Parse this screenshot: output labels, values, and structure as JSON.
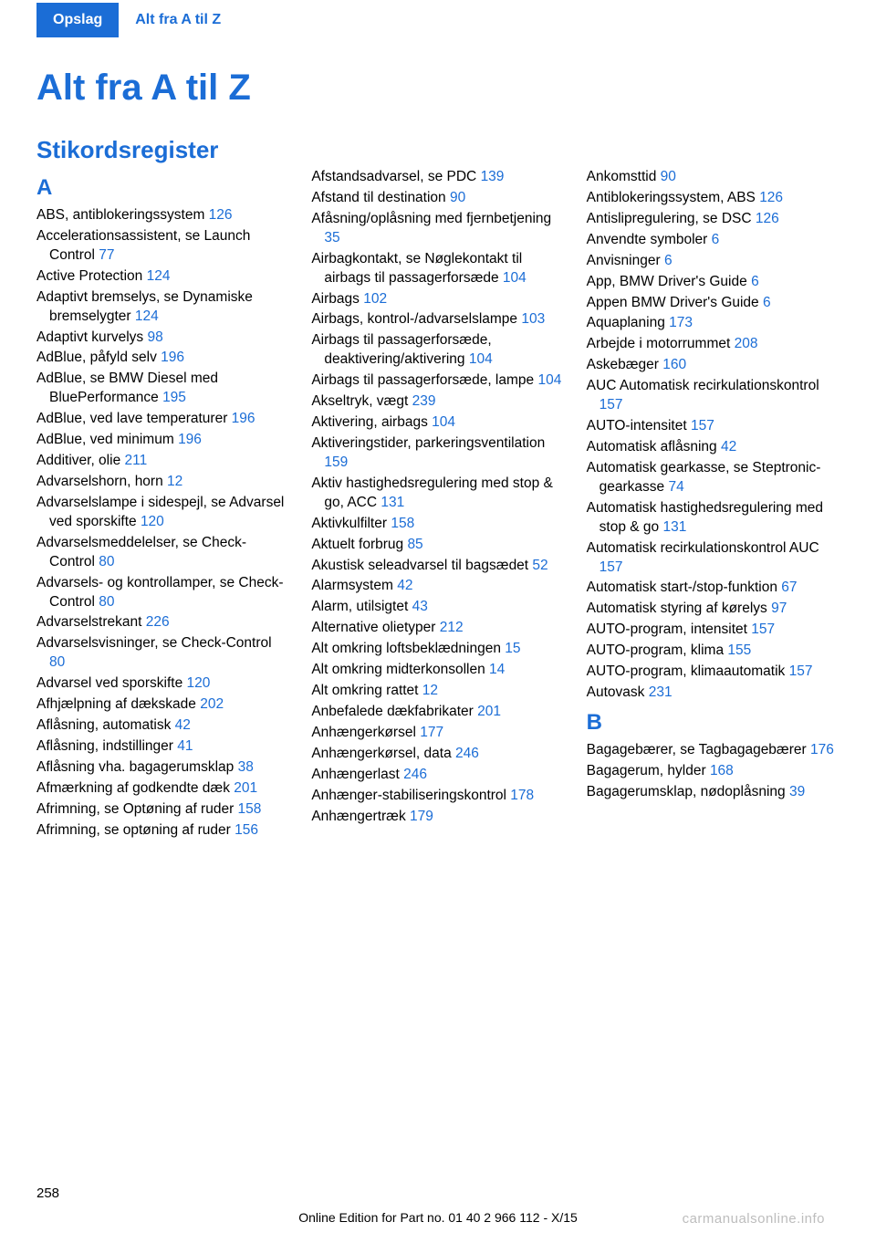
{
  "header": {
    "tab": "Opslag",
    "breadcrumb": "Alt fra A til Z"
  },
  "title": "Alt fra A til Z",
  "section_title": "Stikordsregister",
  "letters": {
    "A": "A",
    "B": "B"
  },
  "col1": [
    {
      "text": "ABS, antiblokeringssy­stem ",
      "ref": "126"
    },
    {
      "text": "Accelerationsassistent, se Launch Control ",
      "ref": "77"
    },
    {
      "text": "Active Protection ",
      "ref": "124"
    },
    {
      "text": "Adaptivt bremselys, se Dyna­miske bremselygter ",
      "ref": "124"
    },
    {
      "text": "Adaptivt kurvelys ",
      "ref": "98"
    },
    {
      "text": "AdBlue, påfyld selv ",
      "ref": "196"
    },
    {
      "text": "AdBlue, se BMW Diesel med BluePerformance ",
      "ref": "195"
    },
    {
      "text": "AdBlue, ved lave temperatu­rer ",
      "ref": "196"
    },
    {
      "text": "AdBlue, ved minimum ",
      "ref": "196"
    },
    {
      "text": "Additiver, olie ",
      "ref": "211"
    },
    {
      "text": "Advarselshorn, horn ",
      "ref": "12"
    },
    {
      "text": "Advarselslampe i sidespejl, se Advarsel ved sporskifte ",
      "ref": "120"
    },
    {
      "text": "Advarselsmeddelelser, se Check-Control ",
      "ref": "80"
    },
    {
      "text": "Advarsels- og kontrollamper, se Check-Control ",
      "ref": "80"
    },
    {
      "text": "Advarselstrekant ",
      "ref": "226"
    },
    {
      "text": "Advarselsvisninger, se Check-Control ",
      "ref": "80"
    },
    {
      "text": "Advarsel ved sporskifte ",
      "ref": "120"
    },
    {
      "text": "Afhjælpning af dæk­skade ",
      "ref": "202"
    },
    {
      "text": "Aflåsning, automatisk ",
      "ref": "42"
    },
    {
      "text": "Aflåsning, indstillinger ",
      "ref": "41"
    },
    {
      "text": "Aflåsning vha. bagagerums­klap ",
      "ref": "38"
    },
    {
      "text": "Afmærkning af godkendte dæk ",
      "ref": "201"
    },
    {
      "text": "Afrimning, se Optøning af ru­der ",
      "ref": "158"
    },
    {
      "text": "Afrimning, se optøning af ru­der ",
      "ref": "156"
    }
  ],
  "col2": [
    {
      "text": "Afstandsadvarsel, se PDC ",
      "ref": "139"
    },
    {
      "text": "Afstand til destination ",
      "ref": "90"
    },
    {
      "text": "Afåsning/oplåsning med fjernbetjening ",
      "ref": "35"
    },
    {
      "text": "Airbagkontakt, se Nøglekon­takt til airbags til passager­forsæde ",
      "ref": "104"
    },
    {
      "text": "Airbags ",
      "ref": "102"
    },
    {
      "text": "Airbags, kontrol-/advarsels­lampe ",
      "ref": "103"
    },
    {
      "text": "Airbags til passagerforsæde, deaktivering/aktivering ",
      "ref": "104"
    },
    {
      "text": "Airbags til passagerforsæde, lampe ",
      "ref": "104"
    },
    {
      "text": "Akseltryk, vægt ",
      "ref": "239"
    },
    {
      "text": "Aktivering, airbags ",
      "ref": "104"
    },
    {
      "text": "Aktiveringstider, parkerings­ventilation ",
      "ref": "159"
    },
    {
      "text": "Aktiv hastighedsregulering med stop & go, ACC ",
      "ref": "131"
    },
    {
      "text": "Aktivkulfilter ",
      "ref": "158"
    },
    {
      "text": "Aktuelt forbrug ",
      "ref": "85"
    },
    {
      "text": "Akustisk seleadvarsel til bag­sædet ",
      "ref": "52"
    },
    {
      "text": "Alarmsystem ",
      "ref": "42"
    },
    {
      "text": "Alarm, utilsigtet ",
      "ref": "43"
    },
    {
      "text": "Alternative olietyper ",
      "ref": "212"
    },
    {
      "text": "Alt omkring loftsbeklædnin­gen ",
      "ref": "15"
    },
    {
      "text": "Alt omkring midterkonsol­len ",
      "ref": "14"
    },
    {
      "text": "Alt omkring rattet ",
      "ref": "12"
    },
    {
      "text": "Anbefalede dækfabrika­ter ",
      "ref": "201"
    },
    {
      "text": "Anhængerkørsel ",
      "ref": "177"
    },
    {
      "text": "Anhængerkørsel, data ",
      "ref": "246"
    },
    {
      "text": "Anhængerlast ",
      "ref": "246"
    },
    {
      "text": "Anhænger-stabiliseringskon­trol ",
      "ref": "178"
    },
    {
      "text": "Anhængertræk ",
      "ref": "179"
    }
  ],
  "col3a": [
    {
      "text": "Ankomsttid ",
      "ref": "90"
    },
    {
      "text": "Antiblokeringssystem, ABS ",
      "ref": "126"
    },
    {
      "text": "Antislipregulering, se DSC ",
      "ref": "126"
    },
    {
      "text": "Anvendte symboler ",
      "ref": "6"
    },
    {
      "text": "Anvisninger ",
      "ref": "6"
    },
    {
      "text": "App, BMW Driver's Guide ",
      "ref": "6"
    },
    {
      "text": "Appen BMW Driver's Guide ",
      "ref": "6"
    },
    {
      "text": "Aquaplaning ",
      "ref": "173"
    },
    {
      "text": "Arbejde i motorrummet ",
      "ref": "208"
    },
    {
      "text": "Askebæger ",
      "ref": "160"
    },
    {
      "text": "AUC Automatisk recirkulati­onskontrol ",
      "ref": "157"
    },
    {
      "text": "AUTO-intensitet ",
      "ref": "157"
    },
    {
      "text": "Automatisk aflåsning ",
      "ref": "42"
    },
    {
      "text": "Automatisk gearkasse, se Steptronic-gearkasse ",
      "ref": "74"
    },
    {
      "text": "Automatisk hastighedsregu­lering med stop & go ",
      "ref": "131"
    },
    {
      "text": "Automatisk recirkulationskon­trol AUC ",
      "ref": "157"
    },
    {
      "text": "Automatisk start-/stop-funk­tion ",
      "ref": "67"
    },
    {
      "text": "Automatisk styring af køre­lys ",
      "ref": "97"
    },
    {
      "text": "AUTO-program, intensi­tet ",
      "ref": "157"
    },
    {
      "text": "AUTO-program, klima ",
      "ref": "155"
    },
    {
      "text": "AUTO-program, klimaauto­matik ",
      "ref": "157"
    },
    {
      "text": "Autovask ",
      "ref": "231"
    }
  ],
  "col3b": [
    {
      "text": "Bagagebærer, se Tagbagage­bærer ",
      "ref": "176"
    },
    {
      "text": "Bagagerum, hylder ",
      "ref": "168"
    },
    {
      "text": "Bagagerumsklap, nødoplås­ning ",
      "ref": "39"
    }
  ],
  "page_number": "258",
  "footer": "Online Edition for Part no. 01 40 2 966 112 - X/15",
  "watermark": "carmanualsonline.info"
}
